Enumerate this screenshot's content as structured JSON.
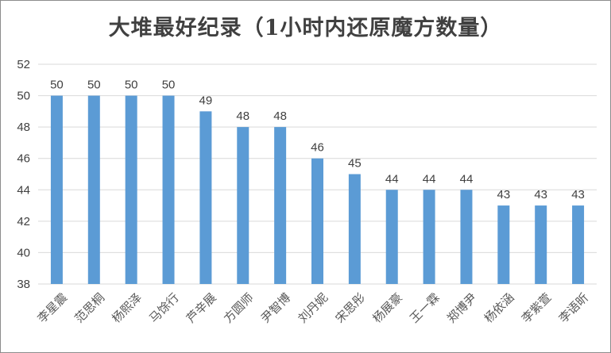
{
  "chart_data": {
    "type": "bar",
    "title": "大堆最好纪录（1小时内还原魔方数量）",
    "categories": [
      "李星震",
      "范思桐",
      "杨熙泽",
      "马馀行",
      "芦辛展",
      "方圆师",
      "尹智博",
      "刘丹妮",
      "宋思彤",
      "杨展豪",
      "王一霖",
      "郑博尹",
      "杨依涵",
      "李紫萱",
      "李语昕"
    ],
    "values": [
      50,
      50,
      50,
      50,
      49,
      48,
      48,
      46,
      45,
      44,
      44,
      44,
      43,
      43,
      43
    ],
    "ylim": [
      38,
      52
    ],
    "yticks": [
      "38",
      "40",
      "42",
      "44",
      "46",
      "48",
      "50",
      "52"
    ],
    "grid": true,
    "legend": "none",
    "colors": {
      "bar": "#5b9bd5",
      "grid": "#d9d9d9",
      "text": "#404040"
    }
  }
}
